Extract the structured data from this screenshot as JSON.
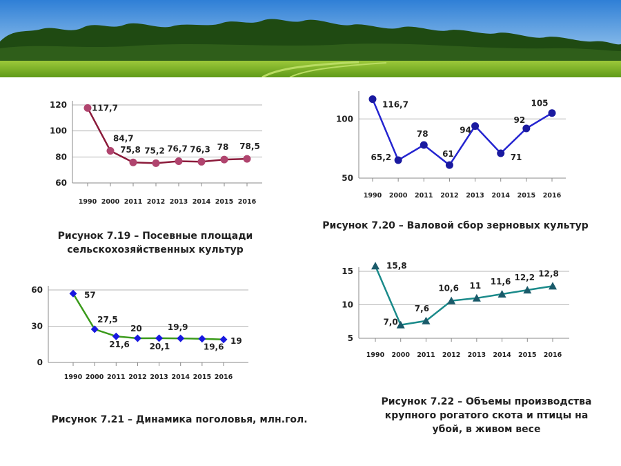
{
  "chart_data": [
    {
      "type": "line",
      "categories": [
        "1990",
        "2000",
        "2011",
        "2012",
        "2013",
        "2014",
        "2015",
        "2016"
      ],
      "values": [
        117.7,
        84.7,
        75.8,
        75.2,
        76.7,
        76.3,
        78,
        78.5
      ],
      "value_labels": [
        "117,7",
        "84,7",
        "75,8",
        "75,2",
        "76,7",
        "76,3",
        "78",
        "78,5"
      ],
      "ylim": [
        60,
        120
      ],
      "yticks": [
        60,
        80,
        100,
        120
      ],
      "color": "#8b1a3a",
      "marker_color": "#b0446e",
      "marker": "circle",
      "grid": true,
      "caption_lines": [
        "Рисунок 7.19 – Посевные площади",
        "сельскохозяйственных культур"
      ]
    },
    {
      "type": "line",
      "categories": [
        "1990",
        "2000",
        "2011",
        "2012",
        "2013",
        "2014",
        "2015",
        "2016"
      ],
      "values": [
        116.7,
        65.2,
        78,
        61,
        94,
        71,
        92,
        105
      ],
      "value_labels": [
        "116,7",
        "65,2",
        "78",
        "61",
        "94",
        "71",
        "92",
        "105"
      ],
      "ylim": [
        50,
        120
      ],
      "yticks": [
        50,
        100
      ],
      "color": "#2424d0",
      "marker_color": "#1a1aa0",
      "marker": "circle",
      "grid": true,
      "caption_lines": [
        "Рисунок 7.20 – Валовой сбор зерновых культур"
      ]
    },
    {
      "type": "line",
      "categories": [
        "1990",
        "2000",
        "2011",
        "2012",
        "2013",
        "2014",
        "2015",
        "2016"
      ],
      "values": [
        57,
        27.5,
        21.6,
        20,
        20.1,
        19.9,
        19.6,
        19
      ],
      "value_labels": [
        "57",
        "27,5",
        "21,6",
        "20",
        "20,1",
        "19,9",
        "19,6",
        "19"
      ],
      "ylim": [
        0,
        60
      ],
      "yticks": [
        0,
        30,
        60
      ],
      "color": "#3a9a1a",
      "marker_color": "#1818e0",
      "marker": "diamond",
      "grid": true,
      "caption_lines": [
        "Рисунок 7.21 – Динамика поголовья, млн.гол."
      ]
    },
    {
      "type": "line",
      "categories": [
        "1990",
        "2000",
        "2011",
        "2012",
        "2013",
        "2014",
        "2015",
        "2016"
      ],
      "values": [
        15.8,
        7.0,
        7.6,
        10.6,
        11,
        11.6,
        12.2,
        12.8
      ],
      "value_labels": [
        "15,8",
        "7,0",
        "7,6",
        "10,6",
        "11",
        "11,6",
        "12,2",
        "12,8"
      ],
      "ylim": [
        5,
        15
      ],
      "yticks": [
        5,
        10,
        15
      ],
      "color": "#1a8a8a",
      "marker_color": "#1a5a6a",
      "marker": "triangle",
      "grid": true,
      "caption_lines": [
        "Рисунок 7.22 – Объемы производства",
        "крупного рогатого скота и птицы на",
        "убой, в живом весе"
      ]
    }
  ]
}
